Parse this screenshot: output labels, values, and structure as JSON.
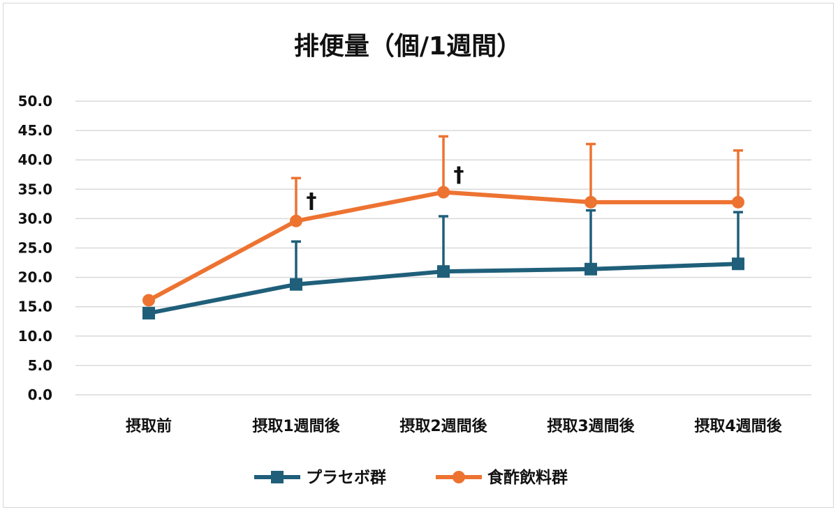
{
  "chart_data": {
    "type": "line",
    "title": "排便量（個/1週間）",
    "categories": [
      "摂取前",
      "摂取1週間後",
      "摂取2週間後",
      "摂取3週間後",
      "摂取4週間後"
    ],
    "ylim": [
      0,
      50
    ],
    "yticks": [
      "0.0",
      "5.0",
      "10.0",
      "15.0",
      "20.0",
      "25.0",
      "30.0",
      "35.0",
      "40.0",
      "45.0",
      "50.0"
    ],
    "grid": true,
    "legend_position": "bottom",
    "series": [
      {
        "name": "プラセボ群",
        "color": "#1f5f7a",
        "marker": "square",
        "values": [
          13.9,
          18.8,
          21.0,
          21.4,
          22.3
        ],
        "error_upper": [
          null,
          26.1,
          30.4,
          31.4,
          31.1
        ]
      },
      {
        "name": "食酢飲料群",
        "color": "#ed7331",
        "marker": "circle",
        "values": [
          16.1,
          29.6,
          34.5,
          32.8,
          32.8
        ],
        "error_upper": [
          null,
          36.9,
          44.0,
          42.7,
          41.6
        ]
      }
    ],
    "annotations": [
      {
        "text": "†",
        "category": "摂取1週間後",
        "y": 33.0
      },
      {
        "text": "†",
        "category": "摂取2週間後",
        "y": 37.5
      }
    ]
  }
}
